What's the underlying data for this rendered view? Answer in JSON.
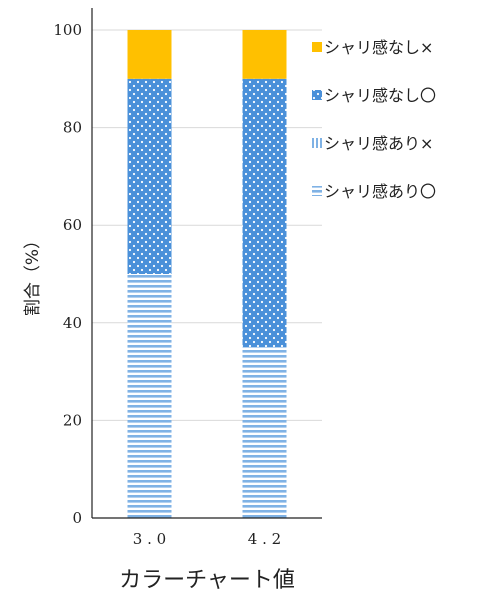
{
  "chart_data": {
    "type": "bar",
    "stacked": true,
    "categories": [
      "3.0",
      "4.2"
    ],
    "series": [
      {
        "name": "シャリ感あり〇",
        "values": [
          50,
          35
        ],
        "color": "#7fb2e5",
        "pattern": "horizontal-stripes"
      },
      {
        "name": "シャリ感あり×",
        "values": [
          0,
          0
        ],
        "color": "#7fb2e5",
        "pattern": "vertical-stripes"
      },
      {
        "name": "シャリ感なし〇",
        "values": [
          40,
          55
        ],
        "color": "#4a90d9",
        "pattern": "dots"
      },
      {
        "name": "シャリ感なし×",
        "values": [
          10,
          10
        ],
        "color": "#ffc000",
        "pattern": "solid"
      }
    ],
    "legend_order": [
      "シャリ感なし×",
      "シャリ感なし〇",
      "シャリ感あり×",
      "シャリ感あり〇"
    ],
    "ylim": [
      0,
      100
    ],
    "yticks": [
      "0",
      "20",
      "40",
      "60",
      "80",
      "100"
    ],
    "xticks": [
      "3.0",
      "4.2"
    ],
    "ylabel": "割合（%）",
    "xlabel": "カラーチャート値",
    "grid": true,
    "legend_position": "right"
  }
}
